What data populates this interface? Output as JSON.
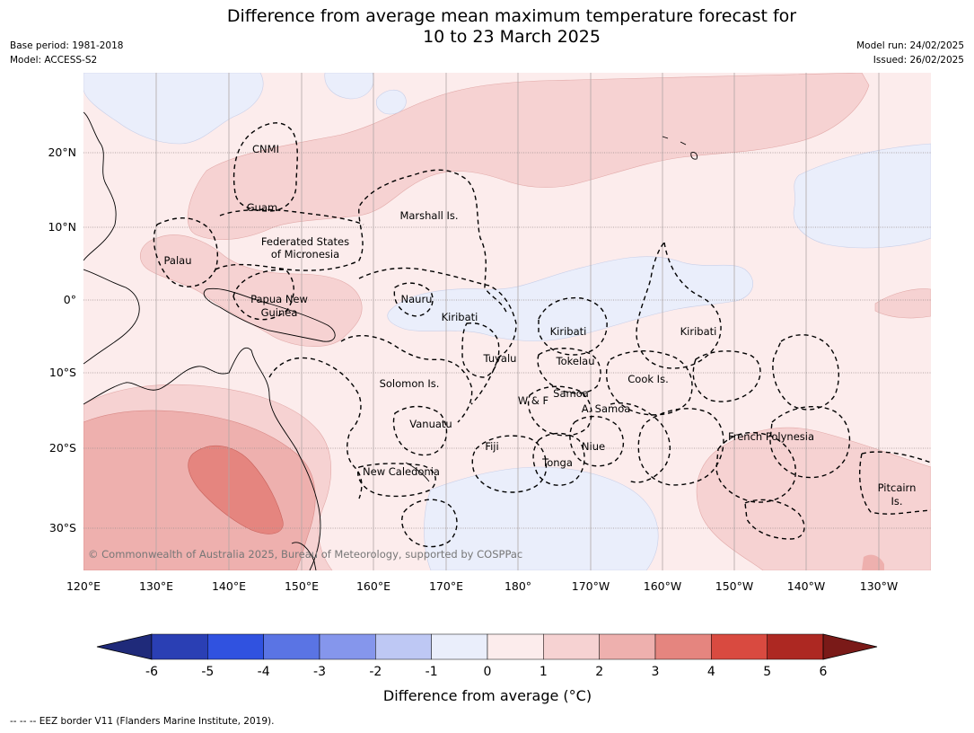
{
  "title_line1": "Difference from average mean maximum temperature forecast for",
  "title_line2": "10 to 23 March 2025",
  "base_period": "Base period: 1981-2018",
  "model": "Model: ACCESS-S2",
  "model_run": "Model run: 24/02/2025",
  "issued": "Issued: 26/02/2025",
  "copyright": "© Commonwealth of Australia 2025, Bureau of Meteorology, supported by COSPPac",
  "footer": "--  --  -- EEZ border V11 (Flanders Marine Institute, 2019).",
  "map": {
    "lon_labels": [
      "120°E",
      "130°E",
      "140°E",
      "150°E",
      "160°E",
      "170°E",
      "180°",
      "170°W",
      "160°W",
      "150°W",
      "140°W",
      "130°W"
    ],
    "lat_labels": [
      "20°N",
      "10°N",
      "0°",
      "10°S",
      "20°S",
      "30°S"
    ],
    "region_labels": [
      "CNMI",
      "Guam",
      "Marshall Is.",
      "Federated States",
      "of Micronesia",
      "Palau",
      "Papua New",
      "Guinea",
      "Nauru",
      "Kiribati",
      "Kiribati",
      "Kiribati",
      "Tuvalu",
      "Tokelau",
      "Cook Is.",
      "Solomon Is.",
      "Samoa",
      "W & F",
      "A. Samoa",
      "Vanuatu",
      "Fiji",
      "Niue",
      "Tonga",
      "French Polynesia",
      "New Caledonia",
      "Pitcairn",
      "Is."
    ]
  },
  "colorbar": {
    "tick_labels": [
      "-6",
      "-5",
      "-4",
      "-3",
      "-2",
      "-1",
      "0",
      "1",
      "2",
      "3",
      "4",
      "5",
      "6"
    ],
    "colors": [
      "#1f2a7a",
      "#2a3fb4",
      "#3052e0",
      "#5a74e4",
      "#8596ec",
      "#bec8f4",
      "#eaeefb",
      "#fcecec",
      "#f6d2d2",
      "#eeb0ae",
      "#e5857f",
      "#d94a40",
      "#ad2822",
      "#7a1a18"
    ],
    "label": "Difference from average (°C)"
  }
}
